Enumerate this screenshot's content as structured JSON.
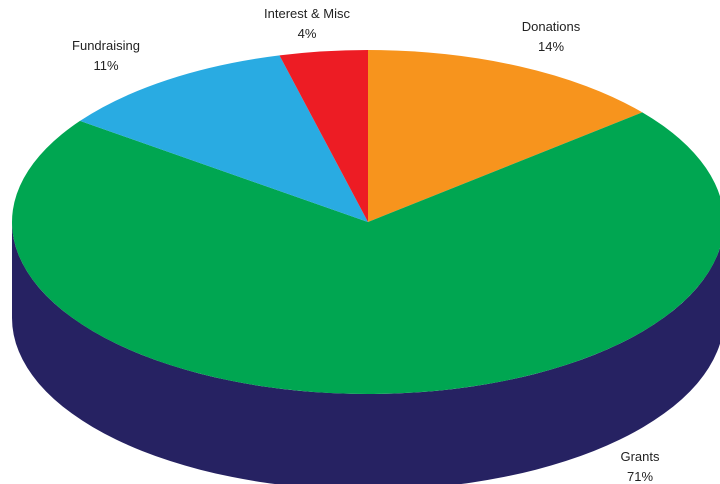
{
  "chart_data": {
    "type": "pie",
    "style": "3d",
    "title": "",
    "slices": [
      {
        "label": "Donations",
        "value": 14,
        "value_label": "14%",
        "color": "#f7941d"
      },
      {
        "label": "Grants",
        "value": 71,
        "value_label": "71%",
        "color": "#00a651"
      },
      {
        "label": "Fundraising",
        "value": 11,
        "value_label": "11%",
        "color": "#29abe2"
      },
      {
        "label": "Interest & Misc",
        "value": 4,
        "value_label": "4%",
        "color": "#ed1c24"
      }
    ],
    "side_color": "#262262",
    "start": "12 o'clock",
    "direction": "clockwise",
    "legend": "none"
  }
}
